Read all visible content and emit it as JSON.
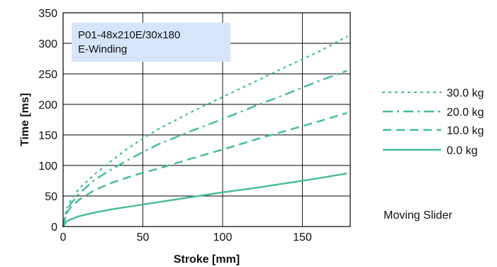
{
  "chart_data": {
    "type": "line",
    "title": "",
    "xlabel": "Stroke [mm]",
    "ylabel": "Time [ms]",
    "xlim": [
      0,
      180
    ],
    "ylim": [
      0,
      350
    ],
    "xticks": [
      0,
      50,
      100,
      150
    ],
    "yticks": [
      0,
      50,
      100,
      150,
      200,
      250,
      300,
      350
    ],
    "grid": true,
    "annotation": {
      "line1": "P01-48x210E/30x180",
      "line2": "E-Winding",
      "background": "#d6e5fa"
    },
    "note": "Moving Slider",
    "legend_position": "right",
    "series": [
      {
        "name": "30.0 kg",
        "style": "dotted",
        "color": "#44bb9c",
        "x": [
          0,
          2,
          5,
          10,
          20,
          30,
          40,
          50,
          60,
          80,
          100,
          120,
          140,
          160,
          178
        ],
        "y": [
          0,
          28,
          44,
          62,
          86,
          107,
          127,
          144,
          160,
          187,
          212,
          237,
          262,
          286,
          311
        ]
      },
      {
        "name": "20.0 kg",
        "style": "dashdot",
        "color": "#44bb9c",
        "x": [
          0,
          2,
          5,
          10,
          20,
          30,
          40,
          50,
          60,
          80,
          100,
          120,
          140,
          160,
          178
        ],
        "y": [
          0,
          24,
          38,
          54,
          77,
          93,
          108,
          122,
          135,
          156,
          176,
          197,
          217,
          238,
          255
        ]
      },
      {
        "name": "10.0 kg",
        "style": "dashed",
        "color": "#44bb9c",
        "x": [
          0,
          2,
          5,
          10,
          20,
          30,
          40,
          50,
          60,
          80,
          100,
          120,
          140,
          160,
          178
        ],
        "y": [
          0,
          21,
          32,
          44,
          60,
          71,
          80,
          88,
          95,
          111,
          126,
          142,
          157,
          172,
          186
        ]
      },
      {
        "name": "0.0 kg",
        "style": "solid",
        "color": "#44bb9c",
        "x": [
          0,
          2,
          5,
          10,
          20,
          30,
          40,
          50,
          60,
          80,
          100,
          120,
          140,
          160,
          178
        ],
        "y": [
          0,
          8,
          12,
          17,
          23,
          28,
          32,
          36,
          40,
          48,
          56,
          63,
          71,
          79,
          87
        ]
      }
    ]
  }
}
